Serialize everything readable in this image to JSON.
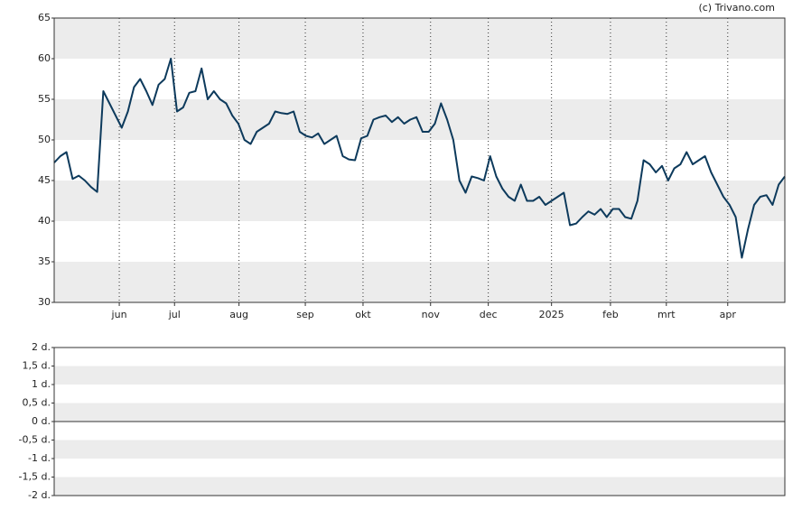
{
  "chart_data": [
    {
      "type": "line",
      "source": "(c) Trivano.com",
      "color": "#0d3a5c",
      "grid": true,
      "ylim": [
        30,
        65
      ],
      "yticks": [
        30,
        35,
        40,
        45,
        50,
        55,
        60,
        65
      ],
      "xlim": [
        0,
        119
      ],
      "xticks": [
        {
          "value": 10.6,
          "label": "jun"
        },
        {
          "value": 19.6,
          "label": "jul"
        },
        {
          "value": 30.1,
          "label": "aug"
        },
        {
          "value": 40.9,
          "label": "sep"
        },
        {
          "value": 50.3,
          "label": "okt"
        },
        {
          "value": 61.3,
          "label": "nov"
        },
        {
          "value": 70.7,
          "label": "dec"
        },
        {
          "value": 81,
          "label": "2025"
        },
        {
          "value": 90.6,
          "label": "feb"
        },
        {
          "value": 99.7,
          "label": "mrt"
        },
        {
          "value": 109.7,
          "label": "apr"
        }
      ],
      "values": [
        47.2,
        48,
        48.5,
        45.2,
        45.6,
        45,
        44.2,
        43.6,
        56,
        54.5,
        53,
        51.5,
        53.5,
        56.5,
        57.5,
        56,
        54.3,
        56.8,
        57.5,
        60,
        53.5,
        54,
        55.8,
        56,
        58.8,
        55,
        56,
        55,
        54.5,
        53,
        52,
        50,
        49.5,
        51,
        51.5,
        52,
        53.5,
        53.3,
        53.2,
        53.5,
        51,
        50.5,
        50.3,
        50.8,
        49.5,
        50,
        50.5,
        48,
        47.6,
        47.5,
        50.2,
        50.5,
        52.5,
        52.8,
        53,
        52.2,
        52.8,
        52,
        52.5,
        52.8,
        51,
        51,
        52,
        54.5,
        52.5,
        50,
        45,
        43.5,
        45.5,
        45.3,
        45,
        48,
        45.5,
        44,
        43,
        42.5,
        44.5,
        42.5,
        42.5,
        43,
        42,
        42.5,
        43,
        43.5,
        39.5,
        39.7,
        40.5,
        41.2,
        40.8,
        41.5,
        40.5,
        41.5,
        41.5,
        40.5,
        40.3,
        42.5,
        47.5,
        47,
        46,
        46.8,
        45,
        46.5,
        47,
        48.5,
        47,
        47.5,
        48,
        46,
        44.5,
        43,
        42,
        40.5,
        35.5,
        39,
        42,
        43,
        43.2,
        42,
        44.5,
        45.5
      ]
    },
    {
      "type": "bar",
      "grid": true,
      "ylim": [
        -2,
        2
      ],
      "yticks": [
        {
          "value": -2,
          "label": "-2 d."
        },
        {
          "value": -1.5,
          "label": "-1,5 d."
        },
        {
          "value": -1,
          "label": "-1 d."
        },
        {
          "value": -0.5,
          "label": "-0,5 d."
        },
        {
          "value": 0,
          "label": "0 d."
        },
        {
          "value": 0.5,
          "label": "0,5 d."
        },
        {
          "value": 1,
          "label": "1 d."
        },
        {
          "value": 1.5,
          "label": "1,5 d."
        },
        {
          "value": 2,
          "label": "2 d."
        }
      ]
    }
  ]
}
